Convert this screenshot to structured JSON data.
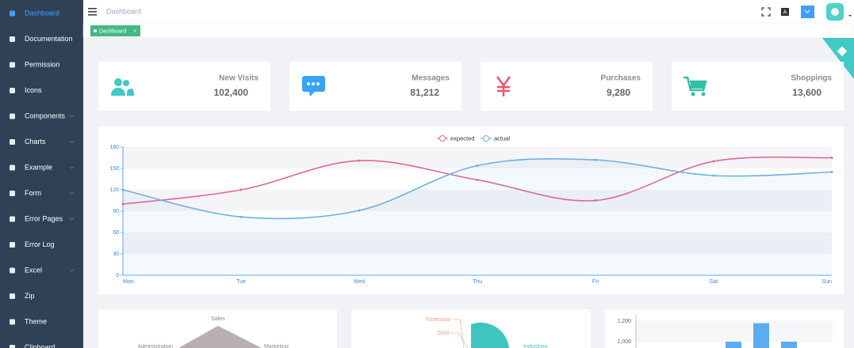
{
  "sidebar": {
    "menu": [
      {
        "label": "Dashboard",
        "submenu": false
      },
      {
        "label": "Documentation",
        "submenu": false
      },
      {
        "label": "Permission",
        "submenu": false
      },
      {
        "label": "Icons",
        "submenu": false
      },
      {
        "label": "Components",
        "submenu": true
      },
      {
        "label": "Charts",
        "submenu": true
      },
      {
        "label": "Example",
        "submenu": true
      },
      {
        "label": "Form",
        "submenu": true
      },
      {
        "label": "Error Pages",
        "submenu": true
      },
      {
        "label": "Error Log",
        "submenu": false
      },
      {
        "label": "Excel",
        "submenu": true
      },
      {
        "label": "Zip",
        "submenu": false
      },
      {
        "label": "Theme",
        "submenu": false
      },
      {
        "label": "Clipboard",
        "submenu": false
      }
    ]
  },
  "navbar": {
    "breadcrumb": "Dashboard"
  },
  "tags": [
    {
      "label": "Dashboard"
    }
  ],
  "panels": [
    {
      "label": "New Visits",
      "value": "102,400",
      "color": "#40c9c6"
    },
    {
      "label": "Messages",
      "value": "81,212",
      "color": "#36a3f7"
    },
    {
      "label": "Purchases",
      "value": "9,280",
      "color": "#f4516c"
    },
    {
      "label": "Shoppings",
      "value": "13,600",
      "color": "#34bfa3"
    }
  ],
  "chart_data": {
    "type": "line",
    "categories": [
      "Mon",
      "Tue",
      "Wed",
      "Thu",
      "Fri",
      "Sat",
      "Sun"
    ],
    "series": [
      {
        "name": "expected",
        "color": "#e0679a",
        "values": [
          100,
          120,
          161,
          134,
          105,
          160,
          165
        ]
      },
      {
        "name": "actual",
        "color": "#6eb0e0",
        "values": [
          120,
          82,
          91,
          154,
          162,
          140,
          145
        ]
      }
    ],
    "ylim": [
      0,
      180
    ],
    "yticks": [
      0,
      30,
      60,
      90,
      120,
      150,
      180
    ]
  },
  "bottom": {
    "radar_labels": [
      "Sales",
      "Administration",
      "Marketing"
    ],
    "pie_labels": [
      "Forecasts",
      "Gold",
      "Industries"
    ],
    "bar_chart": {
      "yticks": [
        {
          "value": 1200,
          "label": "1,200"
        },
        {
          "value": 1000,
          "label": "1,000"
        }
      ],
      "values": [
        1000,
        1180,
        1000
      ],
      "color": "#5aaef0"
    }
  }
}
